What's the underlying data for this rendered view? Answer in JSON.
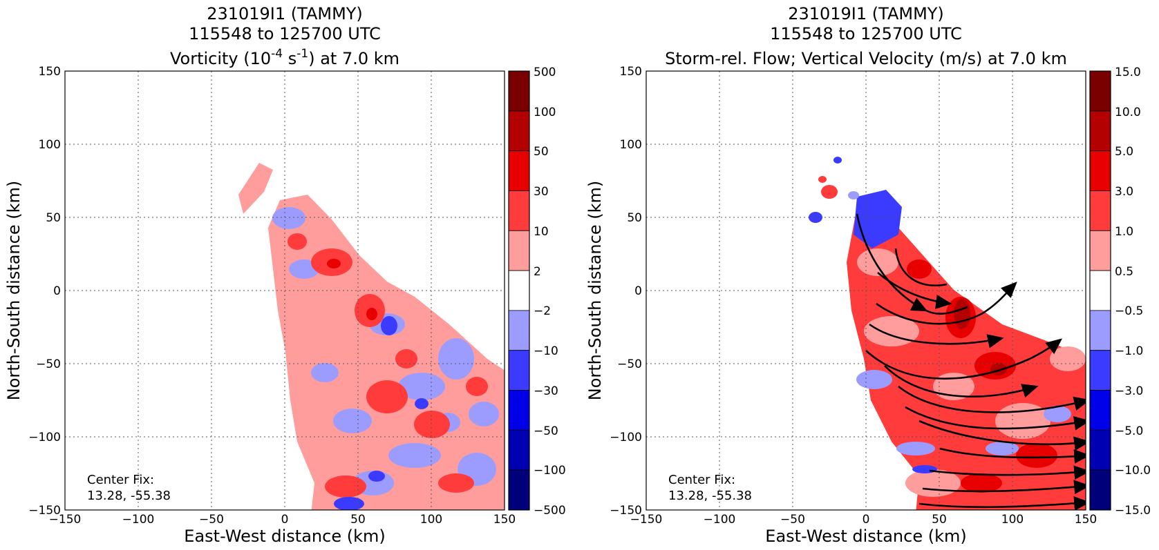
{
  "panels": {
    "left": {
      "title_line1": "231019I1 (TAMMY)",
      "title_line2": "115548 to 125700 UTC",
      "title_line3": "Vorticity (10⁻⁴ s⁻¹) at 7.0 km",
      "title_line3_pre": "Vorticity (10",
      "title_line3_sup1": "-4",
      "title_line3_mid": " s",
      "title_line3_sup2": "-1",
      "title_line3_post": ") at 7.0 km",
      "xlabel": "East-West distance (km)",
      "ylabel": "North-South distance (km)",
      "center_fix_label": "Center Fix:",
      "center_fix_value": "13.28, -55.38",
      "colorbar_labels": [
        "500",
        "100",
        "50",
        "30",
        "10",
        "2",
        "−2",
        "−10",
        "−30",
        "−50",
        "−100",
        "−500"
      ]
    },
    "right": {
      "title_line1": "231019I1 (TAMMY)",
      "title_line2": "115548 to 125700 UTC",
      "title_line3": "Storm-rel. Flow; Vertical Velocity (m/s) at 7.0 km",
      "xlabel": "East-West distance (km)",
      "ylabel": "North-South distance (km)",
      "center_fix_label": "Center Fix:",
      "center_fix_value": "13.28, -55.38",
      "colorbar_labels": [
        "15.0",
        "10.0",
        "5.0",
        "3.0",
        "1.0",
        "0.5",
        "−0.5",
        "−1.0",
        "−3.0",
        "−5.0",
        "−10.0",
        "−15.0"
      ]
    }
  },
  "axis_ticks": {
    "x": [
      "−150",
      "−100",
      "−50",
      "0",
      "50",
      "100",
      "150"
    ],
    "y": [
      "150",
      "100",
      "50",
      "0",
      "−50",
      "−100",
      "−150"
    ]
  },
  "colors": {
    "levels": [
      "#7a0000",
      "#b30000",
      "#e80000",
      "#ff3b3b",
      "#ff9c9c",
      "#ffffff",
      "#9c9cff",
      "#3b3bff",
      "#0000e8",
      "#0000b3",
      "#00007a"
    ],
    "background": "#ffffff",
    "grid": "#555555"
  },
  "chart_data": [
    {
      "type": "heatmap",
      "title": "231019I1 (TAMMY) 115548 to 125700 UTC Vorticity (10^-4 s^-1) at 7.0 km",
      "xlabel": "East-West distance (km)",
      "ylabel": "North-South distance (km)",
      "xlim": [
        -150,
        150
      ],
      "ylim": [
        -150,
        150
      ],
      "grid": true,
      "colorbar_levels": [
        -500,
        -100,
        -50,
        -30,
        -10,
        -2,
        2,
        10,
        30,
        50,
        100,
        500
      ],
      "annotation": "Center Fix: 13.28, -55.38"
    },
    {
      "type": "heatmap",
      "title": "231019I1 (TAMMY) 115548 to 125700 UTC Storm-rel. Flow; Vertical Velocity (m/s) at 7.0 km",
      "xlabel": "East-West distance (km)",
      "ylabel": "North-South distance (km)",
      "xlim": [
        -150,
        150
      ],
      "ylim": [
        -150,
        150
      ],
      "grid": true,
      "colorbar_levels": [
        -15.0,
        -10.0,
        -5.0,
        -3.0,
        -1.0,
        -0.5,
        0.5,
        1.0,
        3.0,
        5.0,
        10.0,
        15.0
      ],
      "annotation": "Center Fix: 13.28, -55.38",
      "overlay": "storm-relative flow streamlines"
    }
  ]
}
